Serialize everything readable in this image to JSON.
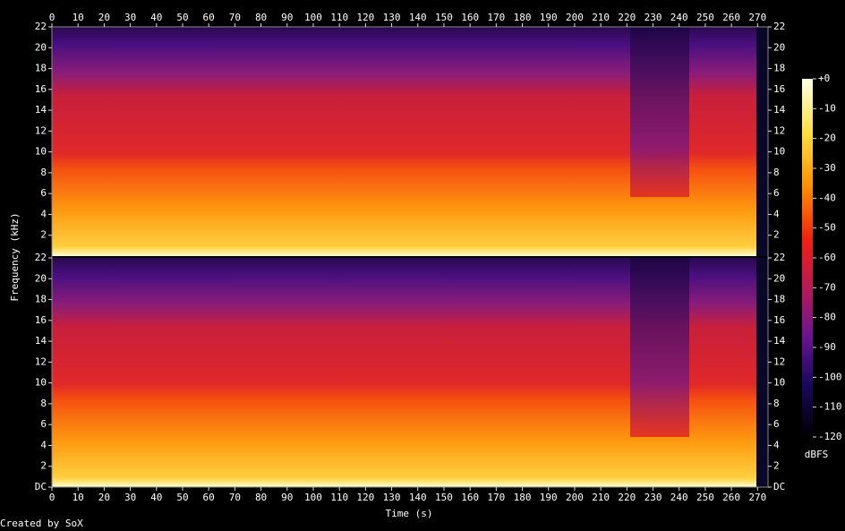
{
  "chart_data": {
    "type": "spectrogram",
    "x_label": "Time (s)",
    "y_label": "Frequency (kHz)",
    "xlim": [
      0,
      274
    ],
    "xticks": [
      0,
      10,
      20,
      30,
      40,
      50,
      60,
      70,
      80,
      90,
      100,
      110,
      120,
      130,
      140,
      150,
      160,
      170,
      180,
      190,
      200,
      210,
      220,
      230,
      240,
      250,
      260,
      270
    ],
    "ylim": [
      0,
      22
    ],
    "channels": [
      {
        "yticks": [
          2,
          4,
          6,
          8,
          10,
          12,
          14,
          16,
          18,
          20,
          22
        ]
      },
      {
        "yticks": [
          {
            "value": 0,
            "label": "DC"
          },
          2,
          4,
          6,
          8,
          10,
          12,
          14,
          16,
          18,
          20,
          22
        ]
      }
    ],
    "colorbar": {
      "label": "dBFS",
      "lim": [
        -120,
        0
      ],
      "ticks": [
        {
          "value": 0,
          "label": "+0"
        },
        -10,
        -20,
        -30,
        -40,
        -50,
        -60,
        -70,
        -80,
        -90,
        -100,
        -110,
        -120
      ]
    },
    "credit": "Created by SoX"
  }
}
